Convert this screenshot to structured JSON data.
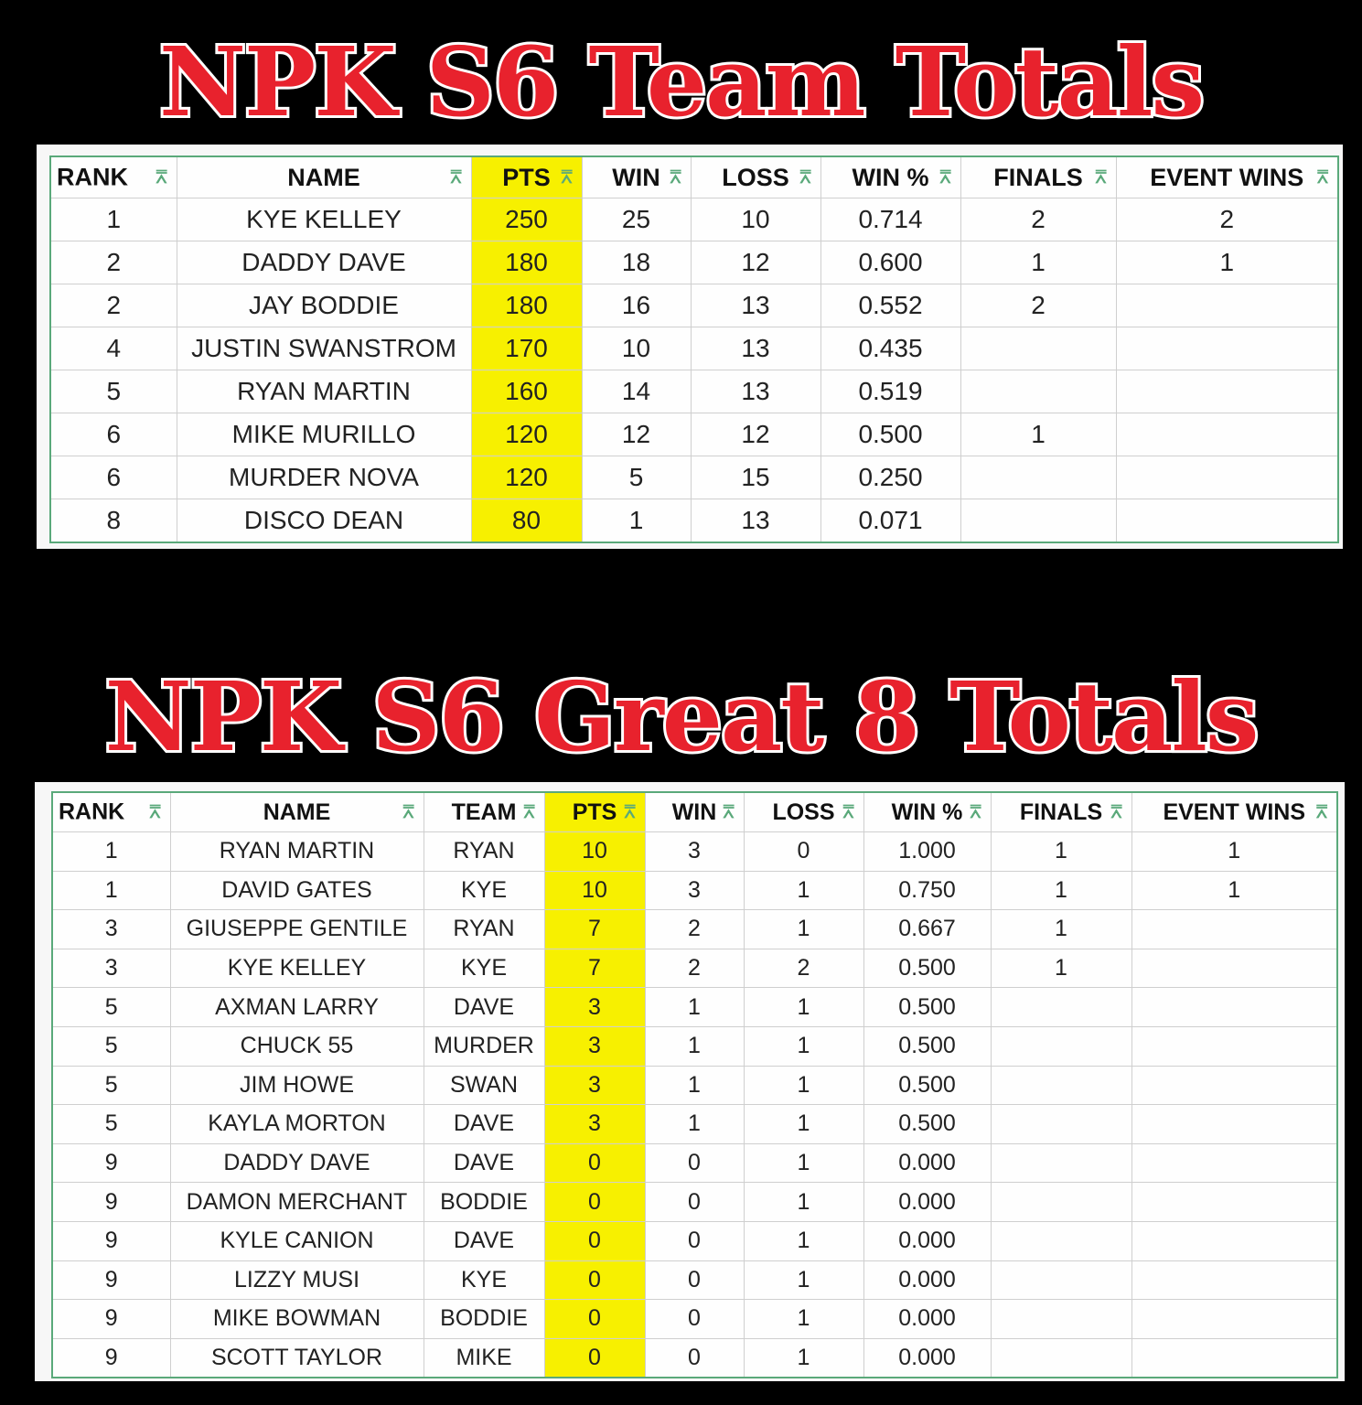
{
  "team_totals": {
    "title": "NPK S6 Team Totals",
    "columns": [
      "RANK",
      "NAME",
      "PTS",
      "WIN",
      "LOSS",
      "WIN %",
      "FINALS",
      "EVENT WINS"
    ],
    "rows": [
      [
        "1",
        "KYE KELLEY",
        "250",
        "25",
        "10",
        "0.714",
        "2",
        "2"
      ],
      [
        "2",
        "DADDY DAVE",
        "180",
        "18",
        "12",
        "0.600",
        "1",
        "1"
      ],
      [
        "2",
        "JAY BODDIE",
        "180",
        "16",
        "13",
        "0.552",
        "2",
        ""
      ],
      [
        "4",
        "JUSTIN SWANSTROM",
        "170",
        "10",
        "13",
        "0.435",
        "",
        ""
      ],
      [
        "5",
        "RYAN MARTIN",
        "160",
        "14",
        "13",
        "0.519",
        "",
        ""
      ],
      [
        "6",
        "MIKE MURILLO",
        "120",
        "12",
        "12",
        "0.500",
        "1",
        ""
      ],
      [
        "6",
        "MURDER NOVA",
        "120",
        "5",
        "15",
        "0.250",
        "",
        ""
      ],
      [
        "8",
        "DISCO DEAN",
        "80",
        "1",
        "13",
        "0.071",
        "",
        ""
      ]
    ]
  },
  "great8_totals": {
    "title": "NPK S6 Great 8 Totals",
    "columns": [
      "RANK",
      "NAME",
      "TEAM",
      "PTS",
      "WIN",
      "LOSS",
      "WIN %",
      "FINALS",
      "EVENT WINS"
    ],
    "rows": [
      [
        "1",
        "RYAN MARTIN",
        "RYAN",
        "10",
        "3",
        "0",
        "1.000",
        "1",
        "1"
      ],
      [
        "1",
        "DAVID GATES",
        "KYE",
        "10",
        "3",
        "1",
        "0.750",
        "1",
        "1"
      ],
      [
        "3",
        "GIUSEPPE GENTILE",
        "RYAN",
        "7",
        "2",
        "1",
        "0.667",
        "1",
        ""
      ],
      [
        "3",
        "KYE KELLEY",
        "KYE",
        "7",
        "2",
        "2",
        "0.500",
        "1",
        ""
      ],
      [
        "5",
        "AXMAN LARRY",
        "DAVE",
        "3",
        "1",
        "1",
        "0.500",
        "",
        ""
      ],
      [
        "5",
        "CHUCK 55",
        "MURDER",
        "3",
        "1",
        "1",
        "0.500",
        "",
        ""
      ],
      [
        "5",
        "JIM HOWE",
        "SWAN",
        "3",
        "1",
        "1",
        "0.500",
        "",
        ""
      ],
      [
        "5",
        "KAYLA MORTON",
        "DAVE",
        "3",
        "1",
        "1",
        "0.500",
        "",
        ""
      ],
      [
        "9",
        "DADDY DAVE",
        "DAVE",
        "0",
        "0",
        "1",
        "0.000",
        "",
        ""
      ],
      [
        "9",
        "DAMON MERCHANT",
        "BODDIE",
        "0",
        "0",
        "1",
        "0.000",
        "",
        ""
      ],
      [
        "9",
        "KYLE CANION",
        "DAVE",
        "0",
        "0",
        "1",
        "0.000",
        "",
        ""
      ],
      [
        "9",
        "LIZZY MUSI",
        "KYE",
        "0",
        "0",
        "1",
        "0.000",
        "",
        ""
      ],
      [
        "9",
        "MIKE BOWMAN",
        "BODDIE",
        "0",
        "0",
        "1",
        "0.000",
        "",
        ""
      ],
      [
        "9",
        "SCOTT TAYLOR",
        "MIKE",
        "0",
        "0",
        "1",
        "0.000",
        "",
        ""
      ]
    ]
  },
  "colors": {
    "title_red": "#e8222d",
    "highlight_yellow": "#f7f000",
    "filter_green": "#5aa97a"
  },
  "icons": {
    "filter": "filter-icon"
  }
}
